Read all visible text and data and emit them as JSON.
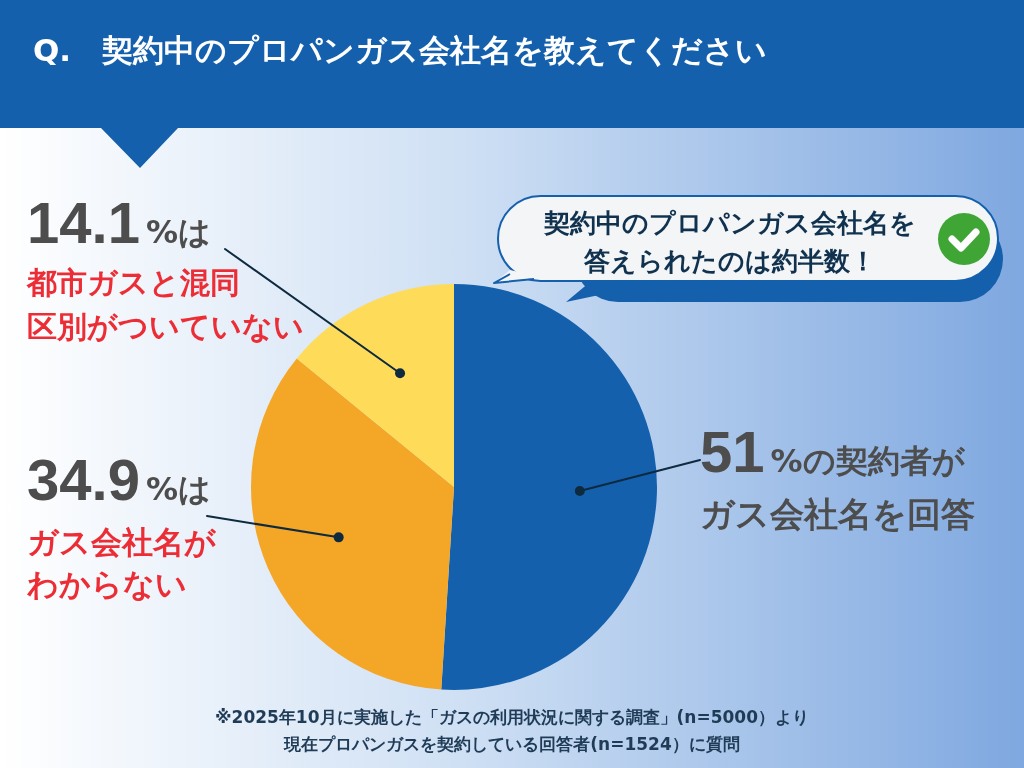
{
  "chart_data": {
    "type": "pie",
    "title": "Q.　契約中のプロパンガス会社名を教えてください",
    "categories": [
      "ガス会社名を回答",
      "ガス会社名がわからない",
      "都市ガスと混同区別がついていない"
    ],
    "values": [
      51,
      34.9,
      14.1
    ],
    "colors": [
      "#1560ad",
      "#f4a626",
      "#fedc5a"
    ],
    "value_labels": [
      "51%の契約者が",
      "34.9%は",
      "14.1%は"
    ],
    "annotations": [
      "契約中のプロパンガス会社名を答えられたのは約半数！",
      "※2025年10月に実施した「ガスの利用状況に関する調査」(n=5000）より現在プロパンガスを契約している回答者(n=1524）に質問"
    ]
  }
}
